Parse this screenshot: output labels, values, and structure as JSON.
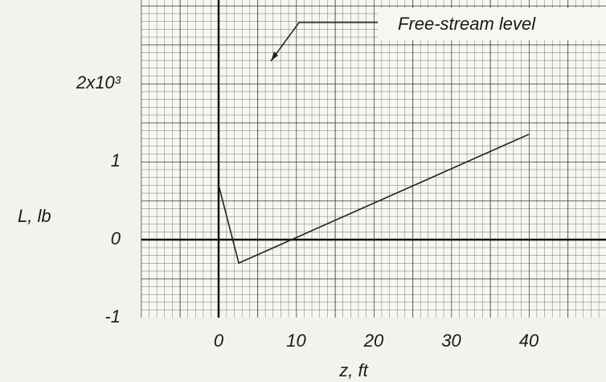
{
  "chart_data": {
    "type": "line",
    "xlabel": "z, ft",
    "ylabel": "L, lb",
    "annotation": "Free-stream level",
    "x": [
      0,
      2.6,
      40
    ],
    "series": [
      {
        "name": "L",
        "color": "#222222",
        "values": [
          700,
          -300,
          1350
        ]
      }
    ],
    "xlim": [
      -10,
      50
    ],
    "ylim": [
      -1000,
      3000
    ],
    "xticks": [
      0,
      10,
      20,
      30,
      40
    ],
    "yticks": [
      {
        "value": -1000,
        "label": "-1"
      },
      0,
      {
        "value": 1000,
        "label": "1"
      },
      {
        "value": 2000,
        "label": "2x10³"
      }
    ],
    "grid": true
  }
}
